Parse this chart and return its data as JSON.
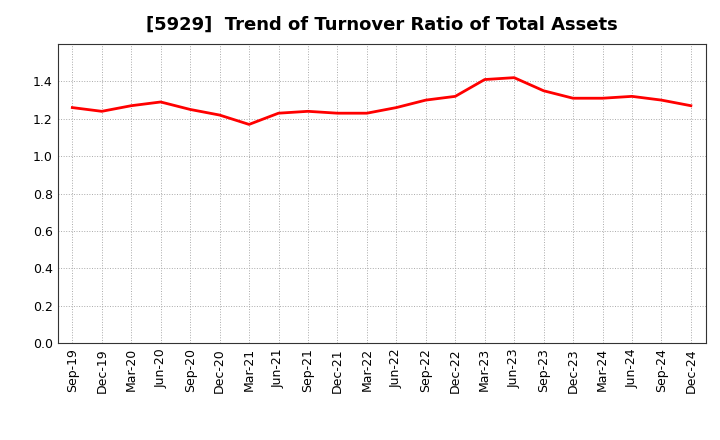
{
  "title": "[5929]  Trend of Turnover Ratio of Total Assets",
  "labels": [
    "Sep-19",
    "Dec-19",
    "Mar-20",
    "Jun-20",
    "Sep-20",
    "Dec-20",
    "Mar-21",
    "Jun-21",
    "Sep-21",
    "Dec-21",
    "Mar-22",
    "Jun-22",
    "Sep-22",
    "Dec-22",
    "Mar-23",
    "Jun-23",
    "Sep-23",
    "Dec-23",
    "Mar-24",
    "Jun-24",
    "Sep-24",
    "Dec-24"
  ],
  "values": [
    1.26,
    1.24,
    1.27,
    1.29,
    1.25,
    1.22,
    1.17,
    1.23,
    1.24,
    1.23,
    1.23,
    1.26,
    1.3,
    1.32,
    1.41,
    1.42,
    1.35,
    1.31,
    1.31,
    1.32,
    1.3,
    1.27
  ],
  "line_color": "#ff0000",
  "line_width": 2.0,
  "ylim": [
    0.0,
    1.6
  ],
  "yticks": [
    0.0,
    0.2,
    0.4,
    0.6,
    0.8,
    1.0,
    1.2,
    1.4
  ],
  "bg_color": "#ffffff",
  "grid_color": "#aaaaaa",
  "title_fontsize": 13,
  "tick_fontsize": 9
}
